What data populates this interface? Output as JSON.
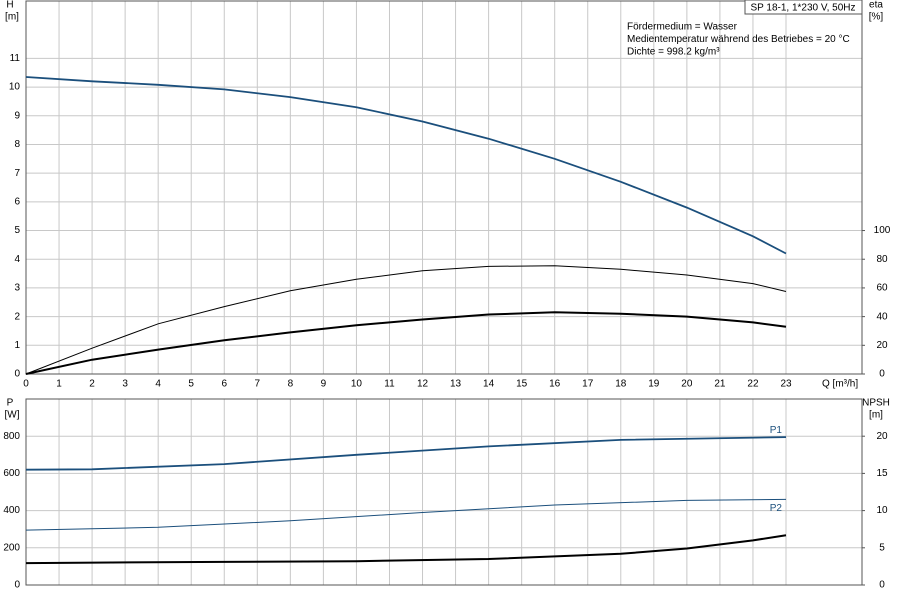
{
  "chart_data": [
    {
      "type": "line",
      "header": "SP 18-1, 1*230 V, 50Hz",
      "annotations": [
        "Fördermedium = Wasser",
        "Medientemperatur während des Betriebes = 20 °C",
        "Dichte = 998.2 kg/m³"
      ],
      "y_label": [
        "H",
        "[m]"
      ],
      "y2_label": [
        "eta",
        "[%]"
      ],
      "x_label": "Q [m³/h]",
      "xlim": [
        0,
        25.3
      ],
      "xticks": [
        0,
        1,
        2,
        3,
        4,
        5,
        6,
        7,
        8,
        9,
        10,
        11,
        12,
        13,
        14,
        15,
        16,
        17,
        18,
        19,
        20,
        21,
        22,
        23
      ],
      "ylim": [
        0,
        13
      ],
      "yticks": [
        0,
        1,
        2,
        3,
        4,
        5,
        6,
        7,
        8,
        9,
        10,
        11
      ],
      "y2lim": [
        0,
        260
      ],
      "y2ticks": [
        0,
        20,
        40,
        60,
        80,
        100
      ],
      "grid": true,
      "series": [
        {
          "color": "#1b4f7c",
          "line_width": 1.8,
          "axis": "y",
          "x": [
            0,
            2,
            4,
            6,
            8,
            10,
            12,
            14,
            16,
            18,
            20,
            22,
            23
          ],
          "values": [
            10.35,
            10.2,
            10.08,
            9.92,
            9.65,
            9.3,
            8.8,
            8.2,
            7.5,
            6.7,
            5.8,
            4.8,
            4.2
          ]
        },
        {
          "color": "#000000",
          "line_width": 1,
          "axis": "y2",
          "x": [
            0,
            2,
            4,
            6,
            8,
            10,
            12,
            14,
            16,
            18,
            20,
            22,
            23
          ],
          "values": [
            0,
            18,
            35,
            47,
            58,
            66,
            72,
            75,
            75.5,
            73,
            69,
            63,
            57.5
          ]
        },
        {
          "color": "#000000",
          "line_width": 2,
          "axis": "y2",
          "x": [
            0,
            2,
            4,
            6,
            8,
            10,
            12,
            14,
            16,
            18,
            20,
            22,
            23
          ],
          "values": [
            0,
            10,
            17,
            23.5,
            29,
            34,
            38,
            41.5,
            43,
            42,
            40,
            36,
            33
          ]
        }
      ]
    },
    {
      "type": "line",
      "y_label": [
        "P",
        "[W]"
      ],
      "y2_label": [
        "NPSH",
        "[m]"
      ],
      "xlim": [
        0,
        25.3
      ],
      "ylim": [
        0,
        1000
      ],
      "yticks": [
        0,
        200,
        400,
        600,
        800
      ],
      "y2lim": [
        0,
        25
      ],
      "y2ticks": [
        0,
        5,
        10,
        15,
        20
      ],
      "grid": true,
      "series": [
        {
          "name": "P1",
          "color": "#1b4f7c",
          "line_width": 1.8,
          "axis": "y",
          "x": [
            0,
            2,
            6,
            10,
            14,
            18,
            23
          ],
          "values": [
            620,
            622,
            650,
            700,
            745,
            780,
            795
          ]
        },
        {
          "name": "P2",
          "color": "#1b4f7c",
          "line_width": 1,
          "axis": "y",
          "x": [
            0,
            4,
            8,
            12,
            16,
            20,
            23
          ],
          "values": [
            295,
            310,
            345,
            390,
            430,
            455,
            460
          ]
        },
        {
          "color": "#000000",
          "line_width": 2,
          "axis": "y2",
          "x": [
            0,
            1.6,
            6,
            10,
            14,
            18,
            20,
            22,
            23
          ],
          "values": [
            2.95,
            3.0,
            3.1,
            3.2,
            3.5,
            4.2,
            4.9,
            6.0,
            6.7
          ]
        }
      ]
    }
  ]
}
